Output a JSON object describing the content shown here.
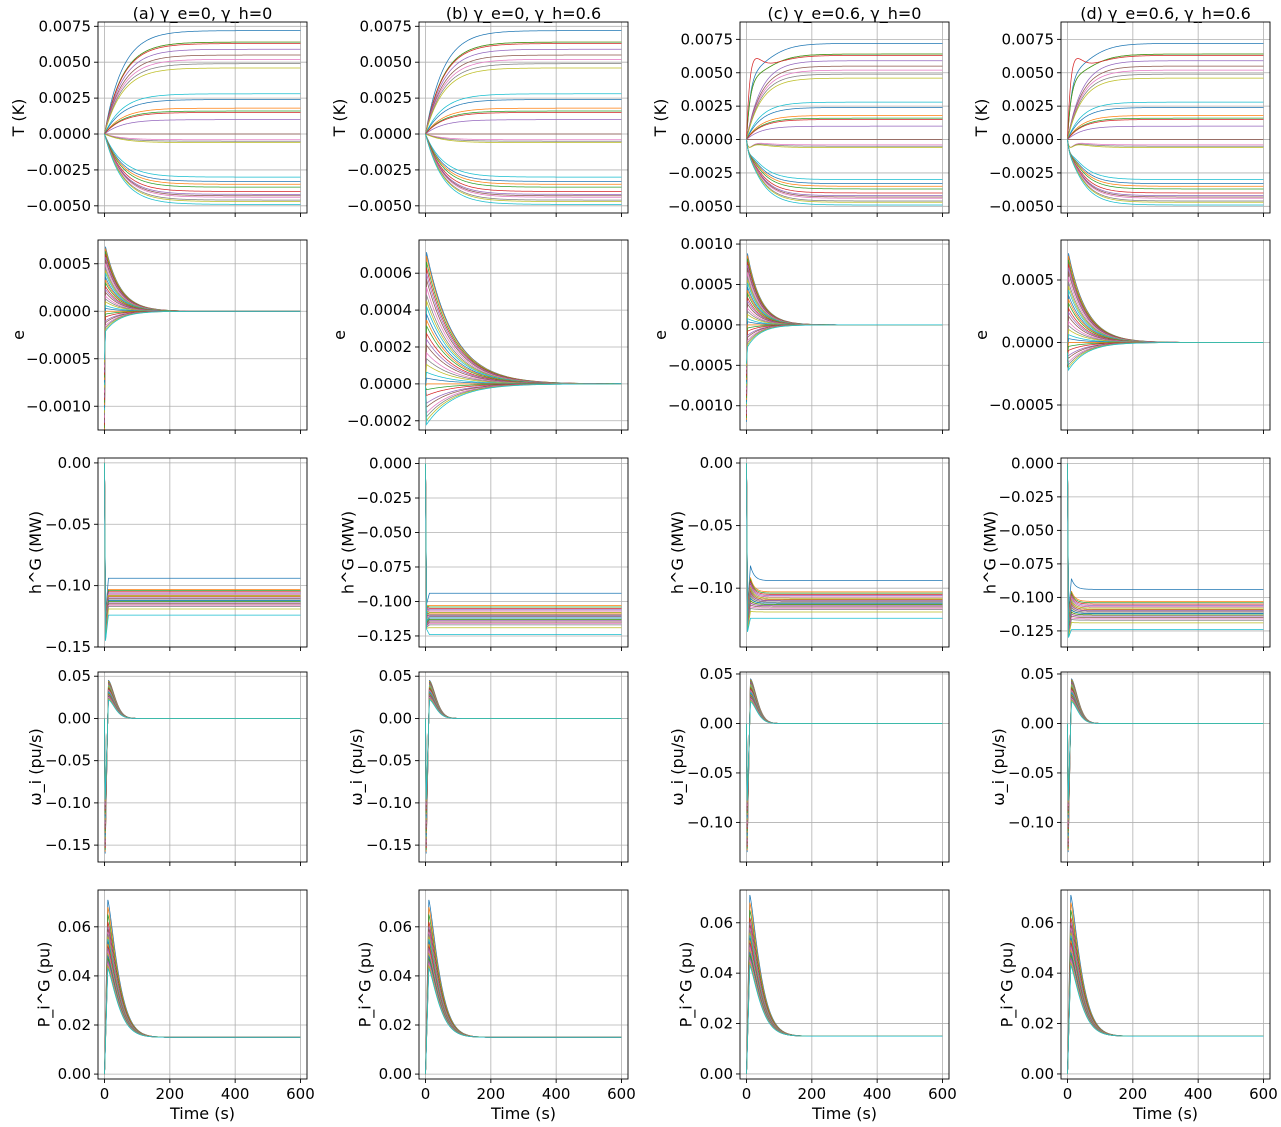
{
  "chart_data": {
    "type": "line",
    "layout": "5 rows x 4 columns small multiples",
    "columns": [
      {
        "title": "(a) γ_e=0,   γ_h=0"
      },
      {
        "title": "(b) γ_e=0,   γ_h=0.6"
      },
      {
        "title": "(c) γ_e=0.6, γ_h=0"
      },
      {
        "title": "(d) γ_e=0.6, γ_h=0.6"
      }
    ],
    "xlabel": "Time (s)",
    "xlim": [
      -20,
      620
    ],
    "xticks": [
      0,
      200,
      400,
      600
    ],
    "xtick_labels": [
      "0",
      "200",
      "400",
      "600"
    ],
    "grid": true,
    "series_count": 30,
    "rows": [
      {
        "variable": "T",
        "ylabel": "T (K)",
        "final_values": [
          0.0072,
          0.0064,
          0.0064,
          0.0063,
          0.0059,
          0.0055,
          0.0052,
          0.0049,
          0.0046,
          0.0028,
          0.0024,
          0.0018,
          0.0016,
          0.0015,
          0.001,
          0.0,
          -0.0004,
          -0.0005,
          -0.0006,
          -0.003,
          -0.0033,
          -0.0035,
          -0.0037,
          -0.004,
          -0.0042,
          -0.0043,
          -0.0044,
          -0.0046,
          -0.0047,
          -0.0049
        ],
        "panels": [
          {
            "ylim": [
              -0.0055,
              0.0078
            ],
            "yticks": [
              -0.005,
              -0.0025,
              0,
              0.0025,
              0.005,
              0.0075
            ],
            "ytick_labels": [
              "−0.0050",
              "−0.0025",
              "0.0000",
              "0.0025",
              "0.0050",
              "0.0075"
            ],
            "tau": 55,
            "overshoot": 0
          },
          {
            "ylim": [
              -0.0055,
              0.0078
            ],
            "yticks": [
              -0.005,
              -0.0025,
              0,
              0.0025,
              0.005,
              0.0075
            ],
            "ytick_labels": [
              "−0.0050",
              "−0.0025",
              "0.0000",
              "0.0025",
              "0.0050",
              "0.0075"
            ],
            "tau": 55,
            "overshoot": 0
          },
          {
            "ylim": [
              -0.0055,
              0.0088
            ],
            "yticks": [
              -0.005,
              -0.0025,
              0,
              0.0025,
              0.005,
              0.0075
            ],
            "ytick_labels": [
              "−0.0050",
              "−0.0025",
              "0.0000",
              "0.0025",
              "0.0050",
              "0.0075"
            ],
            "tau": 45,
            "overshoot": 0.0035
          },
          {
            "ylim": [
              -0.0055,
              0.0088
            ],
            "yticks": [
              -0.005,
              -0.0025,
              0,
              0.0025,
              0.005,
              0.0075
            ],
            "ytick_labels": [
              "−0.0050",
              "−0.0025",
              "0.0000",
              "0.0025",
              "0.0050",
              "0.0075"
            ],
            "tau": 45,
            "overshoot": 0.0035
          }
        ]
      },
      {
        "variable": "e",
        "ylabel": "e",
        "peak_values": [
          0.00068,
          0.00066,
          0.00063,
          0.0006,
          0.00057,
          0.00054,
          0.0005,
          0.00046,
          0.00043,
          0.0004,
          0.00036,
          0.00033,
          0.0003,
          0.00026,
          0.00023,
          0.0002,
          0.00016,
          0.00013,
          0.0001,
          6e-05,
          3e-05,
          0.0,
          -3e-05,
          -6e-05,
          -0.0001,
          -0.00012,
          -0.00015,
          -0.00017,
          -0.00019,
          -0.00021
        ],
        "panels": [
          {
            "ylim": [
              -0.00125,
              0.00075
            ],
            "yticks": [
              -0.001,
              -0.0005,
              0,
              0.0005
            ],
            "ytick_labels": [
              "−0.0010",
              "−0.0005",
              "0.0000",
              "0.0005"
            ],
            "tau": 45,
            "scale": 1.0,
            "spike": -0.00128
          },
          {
            "ylim": [
              -0.00025,
              0.00078
            ],
            "yticks": [
              -0.0002,
              0,
              0.0002,
              0.0004,
              0.0006
            ],
            "ytick_labels": [
              "−0.0002",
              "0.0000",
              "0.0002",
              "0.0004",
              "0.0006"
            ],
            "tau": 85,
            "scale": 1.05,
            "spike": -3e-05
          },
          {
            "ylim": [
              -0.0013,
              0.00105
            ],
            "yticks": [
              -0.001,
              -0.0005,
              0,
              0.0005,
              0.001
            ],
            "ytick_labels": [
              "−0.0010",
              "−0.0005",
              "0.0000",
              "0.0005",
              "0.0010"
            ],
            "tau": 40,
            "scale": 1.3,
            "spike": -0.0012
          },
          {
            "ylim": [
              -0.0007,
              0.00082
            ],
            "yticks": [
              -0.0005,
              0,
              0.0005
            ],
            "ytick_labels": [
              "−0.0005",
              "0.0000",
              "0.0005"
            ],
            "tau": 55,
            "scale": 1.05,
            "spike": -0.0002
          }
        ]
      },
      {
        "variable": "h^G",
        "ylabel": "h^G (MW)",
        "final_values": [
          -0.094,
          -0.103,
          -0.104,
          -0.105,
          -0.106,
          -0.107,
          -0.107,
          -0.108,
          -0.108,
          -0.109,
          -0.109,
          -0.109,
          -0.11,
          -0.11,
          -0.11,
          -0.111,
          -0.111,
          -0.111,
          -0.112,
          -0.112,
          -0.112,
          -0.113,
          -0.113,
          -0.114,
          -0.114,
          -0.115,
          -0.116,
          -0.117,
          -0.119,
          -0.124
        ],
        "panels": [
          {
            "ylim": [
              -0.15,
              0.004
            ],
            "yticks": [
              -0.15,
              -0.1,
              -0.05,
              0
            ],
            "ytick_labels": [
              "−0.15",
              "−0.10",
              "−0.05",
              "0.00"
            ],
            "dip": -0.145,
            "bump": 0.0
          },
          {
            "ylim": [
              -0.133,
              0.004
            ],
            "yticks": [
              -0.125,
              -0.1,
              -0.075,
              -0.05,
              -0.025,
              0
            ],
            "ytick_labels": [
              "−0.125",
              "−0.100",
              "−0.075",
              "−0.050",
              "−0.025",
              "0.000"
            ],
            "dip": -0.12,
            "bump": 0.0
          },
          {
            "ylim": [
              -0.147,
              0.004
            ],
            "yticks": [
              -0.1,
              -0.05,
              0
            ],
            "ytick_labels": [
              "−0.10",
              "−0.05",
              "0.00"
            ],
            "dip": -0.135,
            "bump": 0.012
          },
          {
            "ylim": [
              -0.137,
              0.004
            ],
            "yticks": [
              -0.125,
              -0.1,
              -0.075,
              -0.05,
              -0.025,
              0
            ],
            "ytick_labels": [
              "−0.125",
              "−0.100",
              "−0.075",
              "−0.050",
              "−0.025",
              "0.000"
            ],
            "dip": -0.13,
            "bump": 0.008
          }
        ]
      },
      {
        "variable": "ω_i",
        "ylabel": "ω_i (pu/s)",
        "peak_values": [
          0.045,
          0.044,
          0.043,
          0.042,
          0.042,
          0.041,
          0.04,
          0.04,
          0.039,
          0.038,
          0.037,
          0.037,
          0.036,
          0.035,
          0.034,
          0.034,
          0.033,
          0.032,
          0.031,
          0.031,
          0.03,
          0.029,
          0.028,
          0.027,
          0.027,
          0.026,
          0.025,
          0.024,
          0.023,
          0.022
        ],
        "panels": [
          {
            "ylim": [
              -0.17,
              0.055
            ],
            "yticks": [
              -0.15,
              -0.1,
              -0.05,
              0,
              0.05
            ],
            "ytick_labels": [
              "−0.15",
              "−0.10",
              "−0.05",
              "0.00",
              "0.05"
            ],
            "dip": -0.16
          },
          {
            "ylim": [
              -0.17,
              0.055
            ],
            "yticks": [
              -0.15,
              -0.1,
              -0.05,
              0,
              0.05
            ],
            "ytick_labels": [
              "−0.15",
              "−0.10",
              "−0.05",
              "0.00",
              "0.05"
            ],
            "dip": -0.16
          },
          {
            "ylim": [
              -0.14,
              0.052
            ],
            "yticks": [
              -0.1,
              -0.05,
              0,
              0.05
            ],
            "ytick_labels": [
              "−0.10",
              "−0.05",
              "0.00",
              "0.05"
            ],
            "dip": -0.13
          },
          {
            "ylim": [
              -0.14,
              0.052
            ],
            "yticks": [
              -0.1,
              -0.05,
              0,
              0.05
            ],
            "ytick_labels": [
              "−0.10",
              "−0.05",
              "0.00",
              "0.05"
            ],
            "dip": -0.13
          }
        ]
      },
      {
        "variable": "P_i^G",
        "ylabel": "P_i^G (pu)",
        "final_value": 0.015,
        "peak_values": [
          0.071,
          0.068,
          0.065,
          0.062,
          0.06,
          0.059,
          0.058,
          0.057,
          0.056,
          0.055,
          0.054,
          0.053,
          0.052,
          0.052,
          0.051,
          0.05,
          0.05,
          0.049,
          0.049,
          0.048,
          0.048,
          0.047,
          0.047,
          0.046,
          0.046,
          0.045,
          0.045,
          0.044,
          0.044,
          0.043
        ],
        "panels": [
          {
            "ylim": [
              -0.002,
              0.075
            ],
            "yticks": [
              0,
              0.02,
              0.04,
              0.06
            ],
            "ytick_labels": [
              "0.00",
              "0.02",
              "0.04",
              "0.06"
            ]
          },
          {
            "ylim": [
              -0.002,
              0.075
            ],
            "yticks": [
              0,
              0.02,
              0.04,
              0.06
            ],
            "ytick_labels": [
              "0.00",
              "0.02",
              "0.04",
              "0.06"
            ]
          },
          {
            "ylim": [
              -0.002,
              0.073
            ],
            "yticks": [
              0,
              0.02,
              0.04,
              0.06
            ],
            "ytick_labels": [
              "0.00",
              "0.02",
              "0.04",
              "0.06"
            ]
          },
          {
            "ylim": [
              -0.002,
              0.073
            ],
            "yticks": [
              0,
              0.02,
              0.04,
              0.06
            ],
            "ytick_labels": [
              "0.00",
              "0.02",
              "0.04",
              "0.06"
            ]
          }
        ]
      }
    ],
    "colors": [
      "#1f77b4",
      "#ff7f0e",
      "#2ca02c",
      "#d62728",
      "#9467bd",
      "#8c564b",
      "#e377c2",
      "#7f7f7f",
      "#bcbd22",
      "#17becf"
    ]
  }
}
